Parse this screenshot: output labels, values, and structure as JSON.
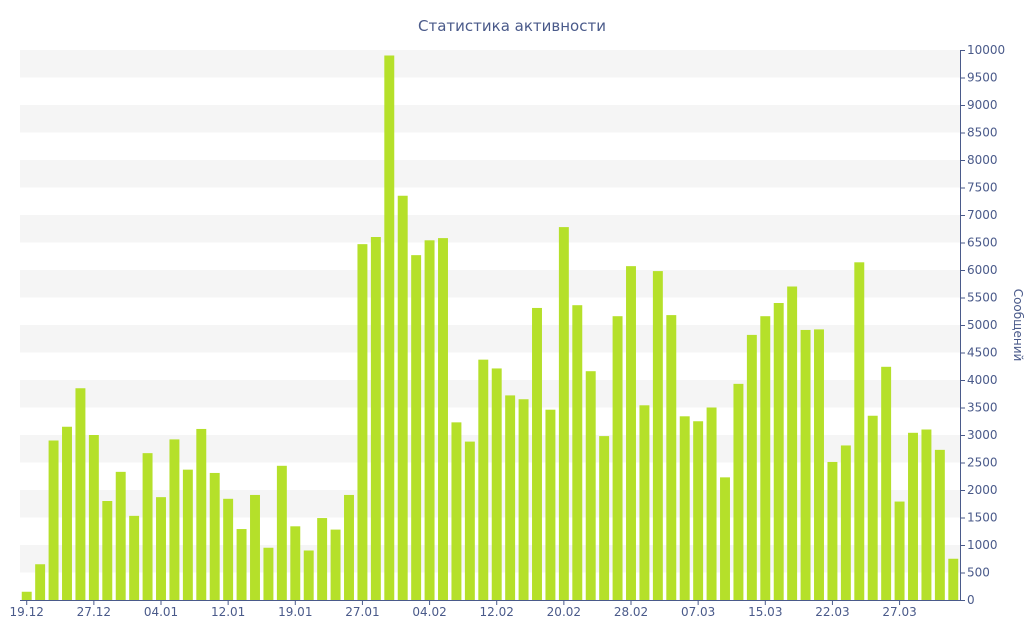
{
  "chart_data": {
    "type": "bar",
    "title": "Статистика активности",
    "xlabel": "",
    "ylabel": "Сообщений",
    "ylim": [
      0,
      10000
    ],
    "y_axis_side": "right",
    "grid": "alternating horizontal bands",
    "bar_color": "#b5e02a",
    "band_color": "#f5f5f5",
    "axis_text_color": "#4a5a8a",
    "yticks": [
      0,
      500,
      1000,
      1500,
      2000,
      2500,
      3000,
      3500,
      4000,
      4500,
      5000,
      5500,
      6000,
      6500,
      7000,
      7500,
      8000,
      8500,
      9000,
      9500,
      10000
    ],
    "xtick_labels": [
      {
        "index": 0,
        "label": "19.12"
      },
      {
        "index": 5,
        "label": "27.12"
      },
      {
        "index": 10,
        "label": "04.01"
      },
      {
        "index": 15,
        "label": "12.01"
      },
      {
        "index": 20,
        "label": "19.01"
      },
      {
        "index": 25,
        "label": "27.01"
      },
      {
        "index": 30,
        "label": "04.02"
      },
      {
        "index": 35,
        "label": "12.02"
      },
      {
        "index": 40,
        "label": "20.02"
      },
      {
        "index": 45,
        "label": "28.02"
      },
      {
        "index": 50,
        "label": "07.03"
      },
      {
        "index": 55,
        "label": "15.03"
      },
      {
        "index": 60,
        "label": "22.03"
      },
      {
        "index": 65,
        "label": "27.03"
      }
    ],
    "values": [
      150,
      650,
      2900,
      3150,
      3850,
      3000,
      1800,
      2330,
      1530,
      2670,
      1870,
      2920,
      2370,
      3110,
      2310,
      1840,
      1290,
      1910,
      950,
      2440,
      1340,
      900,
      1490,
      1280,
      1910,
      6470,
      6600,
      9900,
      7350,
      6270,
      6540,
      6580,
      3230,
      2880,
      4370,
      4210,
      3720,
      3650,
      5310,
      3460,
      6780,
      5360,
      4160,
      2980,
      5160,
      6070,
      3540,
      5980,
      5180,
      3340,
      3250,
      3500,
      2230,
      3930,
      4820,
      5160,
      5400,
      5700,
      4910,
      4920,
      2510,
      2810,
      6140,
      3350,
      4240,
      1790,
      3040,
      3100,
      2730,
      750
    ]
  }
}
